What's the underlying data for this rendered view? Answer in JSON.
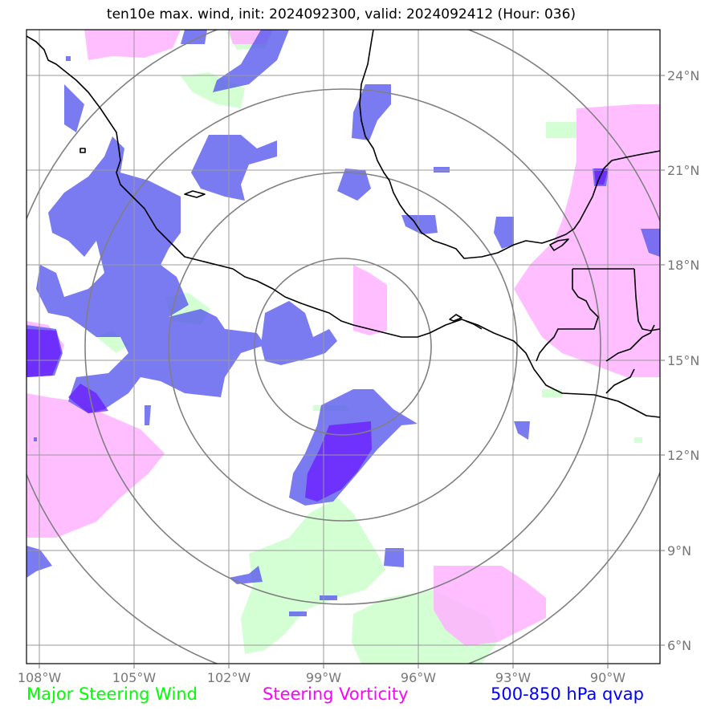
{
  "title": "ten10e max. wind, init: 2024092300, valid: 2024092412 (Hour: 036)",
  "map": {
    "lon_labels": [
      "108°W",
      "105°W",
      "102°W",
      "99°W",
      "96°W",
      "93°W",
      "90°W"
    ],
    "lat_labels": [
      "24°N",
      "21°N",
      "18°N",
      "15°N",
      "12°N",
      "9°N",
      "6°N"
    ]
  },
  "legend": [
    {
      "label": "Major Steering Wind",
      "color": "#00ff00"
    },
    {
      "label": "Steering Vorticity",
      "color": "#ff00ff"
    },
    {
      "label": "500-850 hPa qvap",
      "color": "#0000ff"
    }
  ],
  "colors": {
    "wind_fill": "#ccffcc",
    "vorticity_fill": "#ffb3ff",
    "qvap_fill": "#5555ee",
    "qvap_strong": "#6a1aff",
    "grid": "#999999",
    "rings": "#808080",
    "coast": "#000000"
  }
}
